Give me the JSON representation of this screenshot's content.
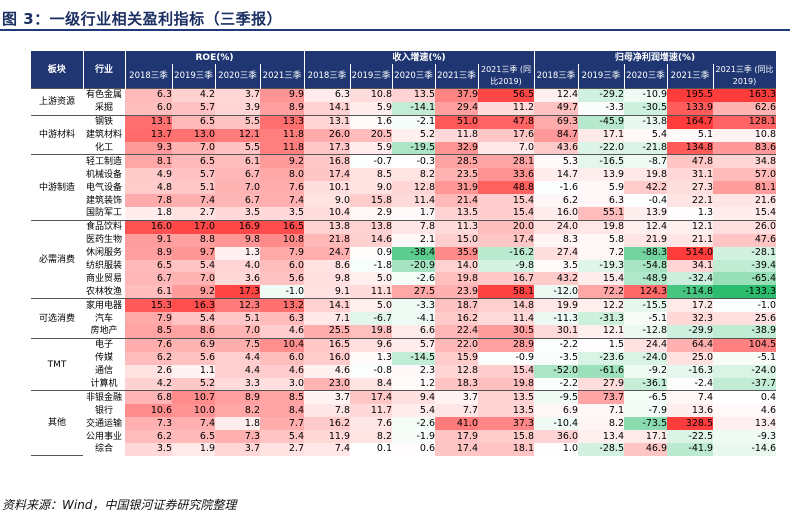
{
  "title": "图 3：一级行业相关盈利指标（三季报）",
  "source": "资料来源：Wind，中国银河证券研究院整理",
  "colors": {
    "header_bg": "#1f3673",
    "header_text": "#ffffff",
    "pos_strong": "#ff0000",
    "neg_strong": "#00b050"
  },
  "header": {
    "sector": "板块",
    "industry": "行业",
    "groups": [
      "ROE(%)",
      "收入增速(%)",
      "归母净利润增速(%)"
    ],
    "roe_cols": [
      "2018三季",
      "2019三季",
      "2020三季",
      "2021三季"
    ],
    "growth_cols": [
      "2018三季",
      "2019三季",
      "2020三季",
      "2021三季",
      "2021三季 (同比2019)"
    ]
  },
  "sectors": [
    {
      "name": "上游资源",
      "rows": [
        {
          "industry": "有色金属",
          "roe": [
            "6.3",
            "4.2",
            "3.7",
            "9.9"
          ],
          "rev": [
            "6.3",
            "10.8",
            "13.5",
            "37.9",
            "56.5"
          ],
          "np": [
            "12.4",
            "-29.2",
            "-10.9",
            "195.5",
            "163.3"
          ]
        },
        {
          "industry": "采掘",
          "roe": [
            "6.0",
            "5.7",
            "3.9",
            "8.9"
          ],
          "rev": [
            "14.1",
            "5.9",
            "-14.1",
            "29.4",
            "11.2"
          ],
          "np": [
            "49.7",
            "-3.3",
            "-30.5",
            "133.9",
            "62.6"
          ]
        }
      ]
    },
    {
      "name": "中游材料",
      "rows": [
        {
          "industry": "钢铁",
          "roe": [
            "13.1",
            "6.5",
            "5.5",
            "13.3"
          ],
          "rev": [
            "13.1",
            "1.6",
            "-2.1",
            "51.0",
            "47.8"
          ],
          "np": [
            "69.3",
            "-45.9",
            "-13.8",
            "164.7",
            "128.1"
          ]
        },
        {
          "industry": "建筑材料",
          "roe": [
            "13.7",
            "13.0",
            "12.1",
            "11.8"
          ],
          "rev": [
            "26.0",
            "20.5",
            "5.2",
            "11.8",
            "17.6"
          ],
          "np": [
            "84.7",
            "17.1",
            "5.4",
            "5.1",
            "10.8"
          ]
        },
        {
          "industry": "化工",
          "roe": [
            "9.3",
            "7.0",
            "5.5",
            "11.8"
          ],
          "rev": [
            "17.3",
            "5.9",
            "-19.5",
            "32.9",
            "7.0"
          ],
          "np": [
            "43.6",
            "-22.0",
            "-21.8",
            "134.8",
            "83.6"
          ]
        }
      ]
    },
    {
      "name": "中游制造",
      "rows": [
        {
          "industry": "轻工制造",
          "roe": [
            "8.1",
            "6.5",
            "6.1",
            "9.2"
          ],
          "rev": [
            "16.8",
            "-0.7",
            "-0.3",
            "28.5",
            "28.1"
          ],
          "np": [
            "5.3",
            "-16.5",
            "-8.7",
            "47.8",
            "34.8"
          ]
        },
        {
          "industry": "机械设备",
          "roe": [
            "4.9",
            "5.7",
            "6.7",
            "8.0"
          ],
          "rev": [
            "17.4",
            "8.5",
            "8.2",
            "23.5",
            "33.6"
          ],
          "np": [
            "14.7",
            "13.9",
            "19.8",
            "31.1",
            "57.0"
          ]
        },
        {
          "industry": "电气设备",
          "roe": [
            "4.8",
            "5.1",
            "7.0",
            "7.6"
          ],
          "rev": [
            "10.1",
            "9.0",
            "12.8",
            "31.9",
            "48.8"
          ],
          "np": [
            "-1.6",
            "5.9",
            "42.2",
            "27.3",
            "81.1"
          ]
        },
        {
          "industry": "建筑装饰",
          "roe": [
            "7.8",
            "7.4",
            "6.7",
            "7.4"
          ],
          "rev": [
            "9.0",
            "15.8",
            "11.4",
            "21.4",
            "15.4"
          ],
          "np": [
            "6.2",
            "6.3",
            "-0.4",
            "22.1",
            "21.6"
          ]
        },
        {
          "industry": "国防军工",
          "roe": [
            "1.8",
            "2.7",
            "3.5",
            "3.5"
          ],
          "rev": [
            "10.4",
            "2.9",
            "1.7",
            "13.5",
            "15.4"
          ],
          "np": [
            "16.0",
            "55.1",
            "13.9",
            "1.3",
            "15.4"
          ]
        }
      ]
    },
    {
      "name": "必需消费",
      "rows": [
        {
          "industry": "食品饮料",
          "roe": [
            "16.0",
            "17.0",
            "16.9",
            "16.5"
          ],
          "rev": [
            "13.8",
            "13.8",
            "7.8",
            "11.3",
            "20.0"
          ],
          "np": [
            "24.0",
            "19.8",
            "12.4",
            "12.1",
            "26.0"
          ]
        },
        {
          "industry": "医药生物",
          "roe": [
            "9.1",
            "8.8",
            "9.8",
            "10.8"
          ],
          "rev": [
            "21.8",
            "14.6",
            "2.1",
            "15.0",
            "17.4"
          ],
          "np": [
            "8.3",
            "5.8",
            "21.9",
            "21.1",
            "47.6"
          ]
        },
        {
          "industry": "休闲服务",
          "roe": [
            "8.9",
            "9.7",
            "1.3",
            "7.9"
          ],
          "rev": [
            "24.7",
            "0.9",
            "-38.4",
            "35.9",
            "-16.2"
          ],
          "np": [
            "27.4",
            "7.2",
            "-88.3",
            "514.0",
            "-28.1"
          ]
        },
        {
          "industry": "纺织服装",
          "roe": [
            "6.5",
            "5.4",
            "4.0",
            "6.0"
          ],
          "rev": [
            "8.6",
            "-1.8",
            "-20.9",
            "14.0",
            "-9.8"
          ],
          "np": [
            "3.5",
            "-19.3",
            "-54.8",
            "34.1",
            "-39.4"
          ]
        },
        {
          "industry": "商业贸易",
          "roe": [
            "6.7",
            "7.0",
            "3.6",
            "5.6"
          ],
          "rev": [
            "9.8",
            "5.0",
            "-2.6",
            "19.8",
            "16.7"
          ],
          "np": [
            "43.2",
            "15.4",
            "-48.9",
            "-32.4",
            "-65.4"
          ]
        },
        {
          "industry": "农林牧渔",
          "roe": [
            "6.1",
            "9.2",
            "17.3",
            "-1.0"
          ],
          "rev": [
            "9.1",
            "11.1",
            "27.5",
            "23.9",
            "58.1"
          ],
          "np": [
            "-12.0",
            "72.2",
            "124.3",
            "-114.8",
            "-133.3"
          ]
        }
      ]
    },
    {
      "name": "可选消费",
      "rows": [
        {
          "industry": "家用电器",
          "roe": [
            "15.3",
            "16.3",
            "12.3",
            "13.2"
          ],
          "rev": [
            "14.1",
            "5.0",
            "-3.3",
            "18.7",
            "14.8"
          ],
          "np": [
            "19.9",
            "12.2",
            "-15.5",
            "17.2",
            "-1.0"
          ]
        },
        {
          "industry": "汽车",
          "roe": [
            "7.9",
            "5.4",
            "5.1",
            "6.3"
          ],
          "rev": [
            "7.1",
            "-6.7",
            "-4.1",
            "16.2",
            "11.4"
          ],
          "np": [
            "-11.3",
            "-31.3",
            "-5.1",
            "32.3",
            "25.6"
          ]
        },
        {
          "industry": "房地产",
          "roe": [
            "8.5",
            "8.6",
            "7.0",
            "4.6"
          ],
          "rev": [
            "25.5",
            "19.8",
            "6.6",
            "22.4",
            "30.5"
          ],
          "np": [
            "30.1",
            "12.1",
            "-12.8",
            "-29.9",
            "-38.9"
          ]
        }
      ]
    },
    {
      "name": "TMT",
      "rows": [
        {
          "industry": "电子",
          "roe": [
            "7.6",
            "6.9",
            "7.5",
            "10.4"
          ],
          "rev": [
            "16.5",
            "9.6",
            "5.7",
            "22.0",
            "28.9"
          ],
          "np": [
            "-2.2",
            "1.5",
            "24.4",
            "64.4",
            "104.5"
          ]
        },
        {
          "industry": "传媒",
          "roe": [
            "6.2",
            "5.6",
            "4.4",
            "6.0"
          ],
          "rev": [
            "16.0",
            "1.3",
            "-14.5",
            "15.9",
            "-0.9"
          ],
          "np": [
            "-3.5",
            "-23.6",
            "-24.0",
            "25.0",
            "-5.1"
          ]
        },
        {
          "industry": "通信",
          "roe": [
            "2.6",
            "1.1",
            "4.4",
            "4.6"
          ],
          "rev": [
            "4.6",
            "-0.8",
            "2.3",
            "12.8",
            "15.4"
          ],
          "np": [
            "-52.0",
            "-61.6",
            "-9.2",
            "-16.3",
            "-24.0"
          ]
        },
        {
          "industry": "计算机",
          "roe": [
            "4.2",
            "5.2",
            "3.3",
            "3.0"
          ],
          "rev": [
            "23.0",
            "8.4",
            "1.2",
            "18.3",
            "19.8"
          ],
          "np": [
            "-2.2",
            "27.9",
            "-36.1",
            "-2.4",
            "-37.7"
          ]
        }
      ]
    },
    {
      "name": "其他",
      "rows": [
        {
          "industry": "非银金融",
          "roe": [
            "6.8",
            "10.7",
            "8.9",
            "8.5"
          ],
          "rev": [
            "3.7",
            "17.4",
            "9.4",
            "3.7",
            "13.5"
          ],
          "np": [
            "-9.5",
            "73.7",
            "-6.5",
            "7.4",
            "0.4"
          ]
        },
        {
          "industry": "银行",
          "roe": [
            "10.6",
            "10.0",
            "8.2",
            "8.4"
          ],
          "rev": [
            "7.8",
            "11.7",
            "5.4",
            "7.7",
            "13.5"
          ],
          "np": [
            "6.9",
            "7.1",
            "-7.9",
            "13.6",
            "4.6"
          ]
        },
        {
          "industry": "交通运输",
          "roe": [
            "7.3",
            "7.4",
            "1.8",
            "7.7"
          ],
          "rev": [
            "16.2",
            "7.6",
            "-2.6",
            "41.0",
            "37.3"
          ],
          "np": [
            "-10.4",
            "8.2",
            "-73.5",
            "328.5",
            "13.4"
          ]
        },
        {
          "industry": "公用事业",
          "roe": [
            "6.2",
            "6.5",
            "7.3",
            "5.4"
          ],
          "rev": [
            "11.9",
            "8.2",
            "-1.9",
            "17.9",
            "15.8"
          ],
          "np": [
            "36.0",
            "13.4",
            "17.1",
            "-22.5",
            "-9.3"
          ]
        },
        {
          "industry": "综合",
          "roe": [
            "3.5",
            "1.9",
            "3.7",
            "2.7"
          ],
          "rev": [
            "7.4",
            "0.1",
            "0.6",
            "17.4",
            "18.1"
          ],
          "np": [
            "1.0",
            "-28.5",
            "46.9",
            "-41.9",
            "-14.6"
          ]
        }
      ]
    }
  ]
}
